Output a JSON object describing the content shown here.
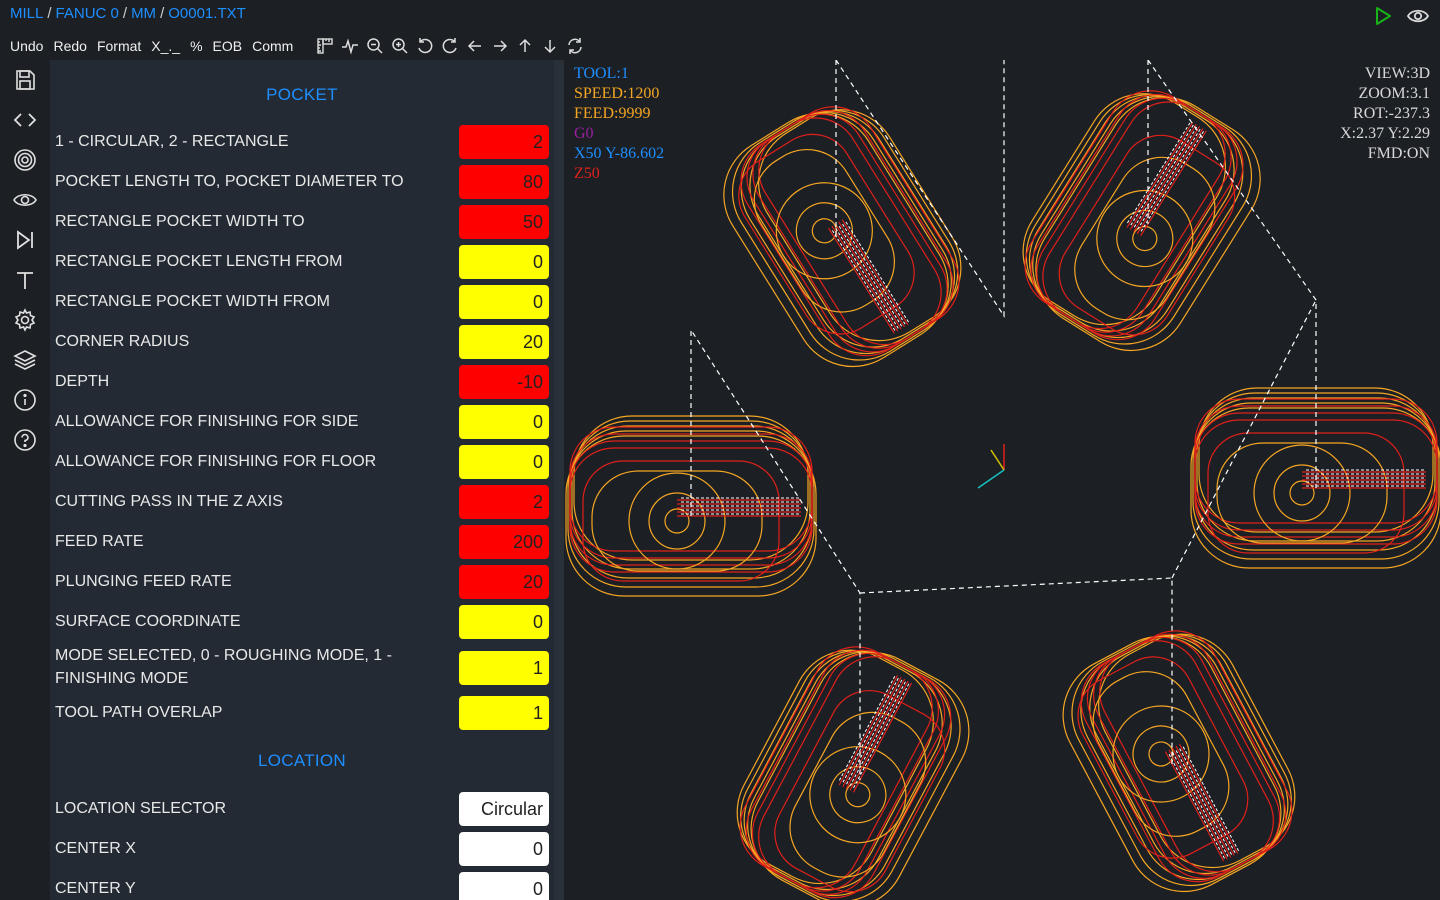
{
  "breadcrumb": [
    "MILL",
    "FANUC 0",
    "MM",
    "O0001.TXT"
  ],
  "toolbar": {
    "text_buttons": [
      "Undo",
      "Redo",
      "Format",
      "X_._",
      "%",
      "EOB",
      "Comm"
    ]
  },
  "pocket": {
    "title": "POCKET",
    "fields": [
      {
        "label": "1 - CIRCULAR, 2 - RECTANGLE",
        "value": "2",
        "color": "red"
      },
      {
        "label": "POCKET LENGTH TO, POCKET DIAMETER TO",
        "value": "80",
        "color": "red"
      },
      {
        "label": "RECTANGLE POCKET WIDTH TO",
        "value": "50",
        "color": "red"
      },
      {
        "label": "RECTANGLE POCKET LENGTH FROM",
        "value": "0",
        "color": "yellow"
      },
      {
        "label": "RECTANGLE POCKET WIDTH FROM",
        "value": "0",
        "color": "yellow"
      },
      {
        "label": "CORNER RADIUS",
        "value": "20",
        "color": "yellow"
      },
      {
        "label": "DEPTH",
        "value": "-10",
        "color": "red"
      },
      {
        "label": "ALLOWANCE FOR FINISHING FOR SIDE",
        "value": "0",
        "color": "yellow"
      },
      {
        "label": "ALLOWANCE FOR FINISHING FOR FLOOR",
        "value": "0",
        "color": "yellow"
      },
      {
        "label": "CUTTING PASS IN THE Z AXIS",
        "value": "2",
        "color": "red"
      },
      {
        "label": "FEED RATE",
        "value": "200",
        "color": "red"
      },
      {
        "label": "PLUNGING FEED RATE",
        "value": "20",
        "color": "red"
      },
      {
        "label": "SURFACE COORDINATE",
        "value": "0",
        "color": "yellow"
      },
      {
        "label": "MODE SELECTED, 0 - ROUGHING MODE, 1 - FINISHING MODE",
        "value": "1",
        "color": "yellow"
      },
      {
        "label": "TOOL PATH OVERLAP",
        "value": "1",
        "color": "yellow"
      }
    ]
  },
  "location": {
    "title": "LOCATION",
    "fields": [
      {
        "label": "LOCATION SELECTOR",
        "value": "Circular",
        "color": "white"
      },
      {
        "label": "CENTER X",
        "value": "0",
        "color": "white"
      },
      {
        "label": "CENTER Y",
        "value": "0",
        "color": "white"
      }
    ]
  },
  "viewport_info": {
    "tool": "TOOL:1",
    "speed": "SPEED:1200",
    "feed": "FEED:9999",
    "gcode": "G0",
    "xy": "X50 Y-86.602",
    "z": "Z50"
  },
  "view_info": {
    "view": "VIEW:3D",
    "zoom": "ZOOM:3.1",
    "rot": "ROT:-237.3",
    "xy": "X:2.37 Y:2.29",
    "fmd": "FMD:ON"
  },
  "colors": {
    "accent": "#1e8fff",
    "field_red": "#ff0000",
    "field_yellow": "#ffff00",
    "path_red": "#e0201a",
    "path_orange": "#f5a623",
    "rapid_white": "#ffffff",
    "run_green": "#19b219",
    "info_tool": "#1e8fff",
    "info_speed": "#f5a623",
    "info_g0": "#9b1fa0",
    "info_z": "#e0201a"
  },
  "icons": {
    "top": [
      "run-icon",
      "preview-eye-icon"
    ],
    "toolbar": [
      "ruler-icon",
      "wave-icon",
      "zoom-out-icon",
      "zoom-in-icon",
      "rotate-left-icon",
      "rotate-right-icon",
      "arrow-left-icon",
      "arrow-right-icon",
      "arrow-up-icon",
      "arrow-down-icon",
      "refresh-icon"
    ],
    "sidebar": [
      "save-icon",
      "code-icon",
      "target-icon",
      "eye-icon",
      "skip-forward-icon",
      "text-icon",
      "settings-icon",
      "layers-icon",
      "info-icon",
      "help-icon"
    ]
  }
}
